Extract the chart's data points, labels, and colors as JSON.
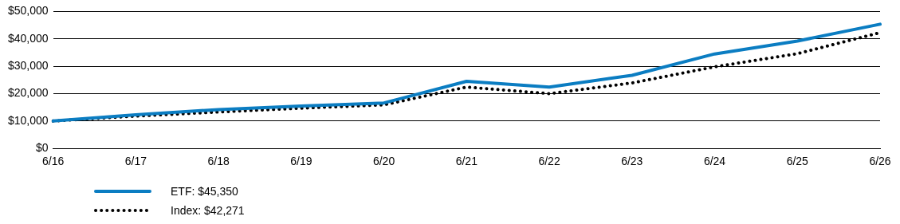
{
  "chart_data": {
    "type": "line",
    "categories": [
      "6/16",
      "6/17",
      "6/18",
      "6/19",
      "6/20",
      "6/21",
      "6/22",
      "6/23",
      "6/24",
      "6/25",
      "6/26"
    ],
    "series": [
      {
        "name": "ETF: $45,350",
        "color": "#0b7dc2",
        "values": [
          10000,
          12300,
          14200,
          15500,
          16600,
          24500,
          22400,
          26700,
          34500,
          39200,
          45350
        ],
        "line_style": "solid"
      },
      {
        "name": "Index: $42,271",
        "color": "#000000",
        "values": [
          10000,
          11800,
          13300,
          14700,
          15900,
          22400,
          20000,
          23900,
          29800,
          34600,
          42271
        ],
        "line_style": "dotted"
      }
    ],
    "ylim": [
      0,
      50000
    ],
    "yticks": [
      {
        "value": 0,
        "label": "$0"
      },
      {
        "value": 10000,
        "label": "$10,000"
      },
      {
        "value": 20000,
        "label": "$20,000"
      },
      {
        "value": 30000,
        "label": "$30,000"
      },
      {
        "value": 40000,
        "label": "$40,000"
      },
      {
        "value": 50000,
        "label": "$50,000"
      }
    ],
    "grid": "y",
    "legend": "bottom",
    "marker": "none"
  }
}
